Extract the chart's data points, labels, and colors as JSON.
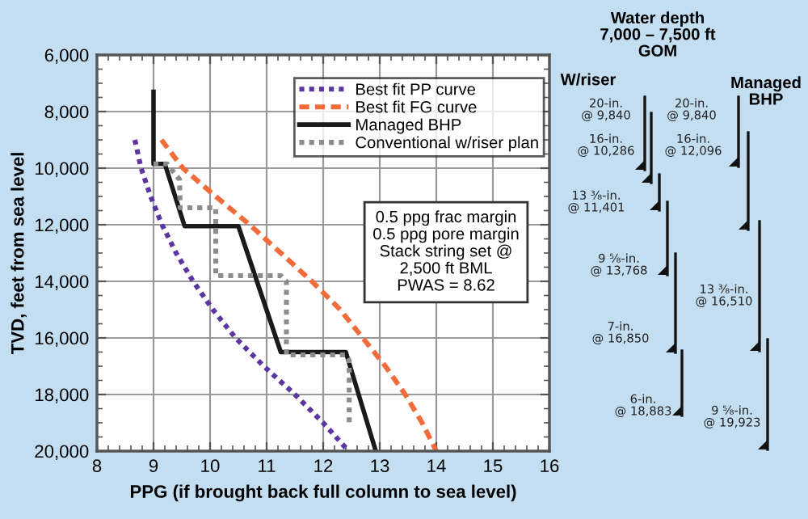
{
  "chart_data": {
    "type": "line",
    "xlabel": "PPG (if brought back full column to sea level)",
    "ylabel": "TVD, feet from sea level",
    "xlim": [
      8,
      16
    ],
    "xticks": [
      8,
      9,
      10,
      11,
      12,
      13,
      14,
      15,
      16
    ],
    "ylim": [
      20000,
      6000
    ],
    "yticks": [
      {
        "value": 6000,
        "label": "6,000"
      },
      {
        "value": 8000,
        "label": "8,000"
      },
      {
        "value": 10000,
        "label": "10,000"
      },
      {
        "value": 12000,
        "label": "12,000"
      },
      {
        "value": 14000,
        "label": "14,000"
      },
      {
        "value": 16000,
        "label": "16,000"
      },
      {
        "value": 18000,
        "label": "18,000"
      },
      {
        "value": 20000,
        "label": "20,000"
      }
    ],
    "grid": true,
    "legend": "top right",
    "series": [
      {
        "name": "Best fit PP curve",
        "color": "#5b35a0",
        "line_style": "dotted",
        "x": [
          8.67,
          8.78,
          8.95,
          9.15,
          9.4,
          9.7,
          10.05,
          10.45,
          10.95,
          11.5,
          12.0,
          12.45
        ],
        "values": [
          9000,
          10000,
          11000,
          12000,
          13000,
          14000,
          15000,
          16000,
          17000,
          18000,
          19000,
          20000
        ]
      },
      {
        "name": "Best fit FG curve",
        "color": "#f26b3a",
        "line_style": "dashed",
        "x": [
          9.14,
          9.52,
          10.1,
          10.7,
          11.25,
          11.8,
          12.3,
          12.7,
          13.1,
          13.45,
          13.75,
          14.0
        ],
        "values": [
          9000,
          10000,
          11000,
          12000,
          13000,
          14000,
          15000,
          16000,
          17000,
          18000,
          19000,
          20000
        ]
      },
      {
        "name": "Managed BHP",
        "color": "#1a1a1a",
        "line_style": "solid",
        "x": [
          9.0,
          9.0,
          9.2,
          9.55,
          10.5,
          11.25,
          12.4,
          12.93
        ],
        "values": [
          7300,
          9850,
          9850,
          12050,
          12050,
          16500,
          16500,
          20000
        ]
      },
      {
        "name": "Conventional w/riser plan",
        "color": "#8c8c8c",
        "line_style": "dotted",
        "x": [
          9.0,
          9.24,
          9.46,
          9.47,
          10.1,
          10.1,
          11.25,
          11.35,
          11.35,
          12.4,
          12.46,
          12.46
        ],
        "values": [
          9850,
          9850,
          10400,
          11400,
          11400,
          13800,
          13800,
          14000,
          16600,
          16600,
          16800,
          19000
        ]
      }
    ],
    "annotations": [
      "0.5 ppg frac margin\n0.5 ppg pore margin\nStack string set @\n2,500 ft BML\nPWAS = 8.62",
      "Water depth\n7,000 – 7,500 ft\nGOM",
      "W/riser",
      "Managed\nBHP",
      "20-in.\n@ 9,840",
      "16-in.\n@ 10,286",
      "13 ³⁄₈-in.\n@ 11,401",
      "9 ⁵⁄₈-in.\n@ 13,768",
      "7-in.\n@ 16,850",
      "6-in.\n@ 18,883",
      "20-in.\n@ 9,840",
      "16-in.\n@ 12,096",
      "13 ³⁄₈-in.\n@ 16,510",
      "9 ⁵⁄₈-in.\n@ 19,923"
    ]
  }
}
